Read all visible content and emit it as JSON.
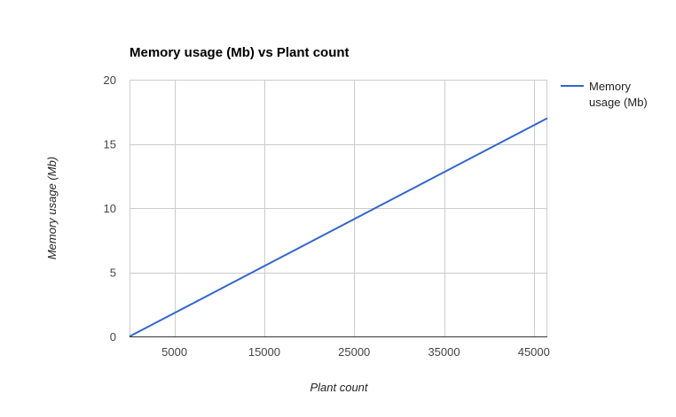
{
  "chart_data": {
    "type": "line",
    "title": "Memory usage (Mb) vs Plant count",
    "xlabel": "Plant count",
    "ylabel": "Memory usage (Mb)",
    "xlim": [
      0,
      46500
    ],
    "ylim": [
      0,
      20
    ],
    "x_ticks": [
      5000,
      15000,
      25000,
      35000,
      45000
    ],
    "y_ticks": [
      0,
      5,
      10,
      15,
      20
    ],
    "grid": true,
    "legend": "right",
    "series": [
      {
        "name": "Memory usage (Mb)",
        "color": "#3366cc",
        "x": [
          0,
          46500
        ],
        "y": [
          0,
          17
        ]
      }
    ],
    "legend_lines": [
      "Memory",
      "usage (Mb)"
    ]
  }
}
